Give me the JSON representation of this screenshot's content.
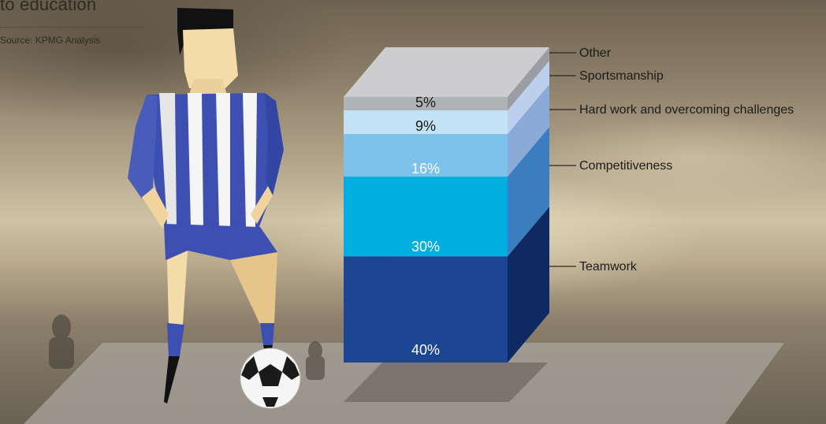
{
  "header": {
    "title_fragment": "to education",
    "source": "Source: KPMG Analysis"
  },
  "chart_data": {
    "type": "bar",
    "stacked": true,
    "categories": [
      "Teamwork",
      "Competitiveness",
      "Hard work and overcoming challenges",
      "Sportsmanship",
      "Other"
    ],
    "values": [
      40,
      30,
      16,
      9,
      5
    ],
    "value_labels": [
      "40%",
      "30%",
      "16%",
      "9%",
      "5%"
    ],
    "unit": "%",
    "colors_front": [
      "#1c4593",
      "#00aee0",
      "#7dc2ea",
      "#c2e2f6",
      "#b0b3b6"
    ],
    "colors_side": [
      "#0f2a63",
      "#3a7ec0",
      "#8aaad8",
      "#bcd0ee",
      "#9a9ea4"
    ],
    "label_colors": [
      "#ffffff",
      "#ffffff",
      "#ffffff",
      "#1d1b18",
      "#1d1b18"
    ],
    "top_color": "#cdcdcf",
    "legend_position": "right"
  }
}
